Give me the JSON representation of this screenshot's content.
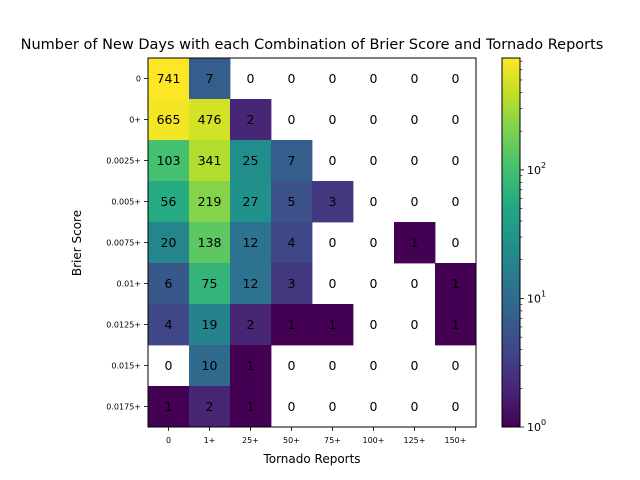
{
  "chart_data": {
    "type": "heatmap",
    "title": "Number of New Days with each Combination of Brier Score and Tornado Reports",
    "xlabel": "Tornado Reports",
    "ylabel": "Brier Score",
    "x_categories": [
      "0",
      "1+",
      "25+",
      "50+",
      "75+",
      "100+",
      "125+",
      "150+"
    ],
    "y_categories": [
      "0",
      "0+",
      "0.0025+",
      "0.005+",
      "0.0075+",
      "0.01+",
      "0.0125+",
      "0.015+",
      "0.0175+"
    ],
    "values": [
      [
        741,
        7,
        0,
        0,
        0,
        0,
        0,
        0
      ],
      [
        665,
        476,
        2,
        0,
        0,
        0,
        0,
        0
      ],
      [
        103,
        341,
        25,
        7,
        0,
        0,
        0,
        0
      ],
      [
        56,
        219,
        27,
        5,
        3,
        0,
        0,
        0
      ],
      [
        20,
        138,
        12,
        4,
        0,
        0,
        1,
        0
      ],
      [
        6,
        75,
        12,
        3,
        0,
        0,
        0,
        1
      ],
      [
        4,
        19,
        2,
        1,
        1,
        0,
        0,
        1
      ],
      [
        0,
        10,
        1,
        0,
        0,
        0,
        0,
        0
      ],
      [
        1,
        2,
        1,
        0,
        0,
        0,
        0,
        0
      ]
    ],
    "colorscale": "viridis",
    "color_scale_type": "log",
    "zero_color": "#ffffff",
    "colorbar": {
      "range": [
        1,
        741
      ],
      "ticks": [
        {
          "value": 1,
          "base": "10",
          "exp": "0"
        },
        {
          "value": 10,
          "base": "10",
          "exp": "1"
        },
        {
          "value": 100,
          "base": "10",
          "exp": "2"
        }
      ]
    }
  }
}
